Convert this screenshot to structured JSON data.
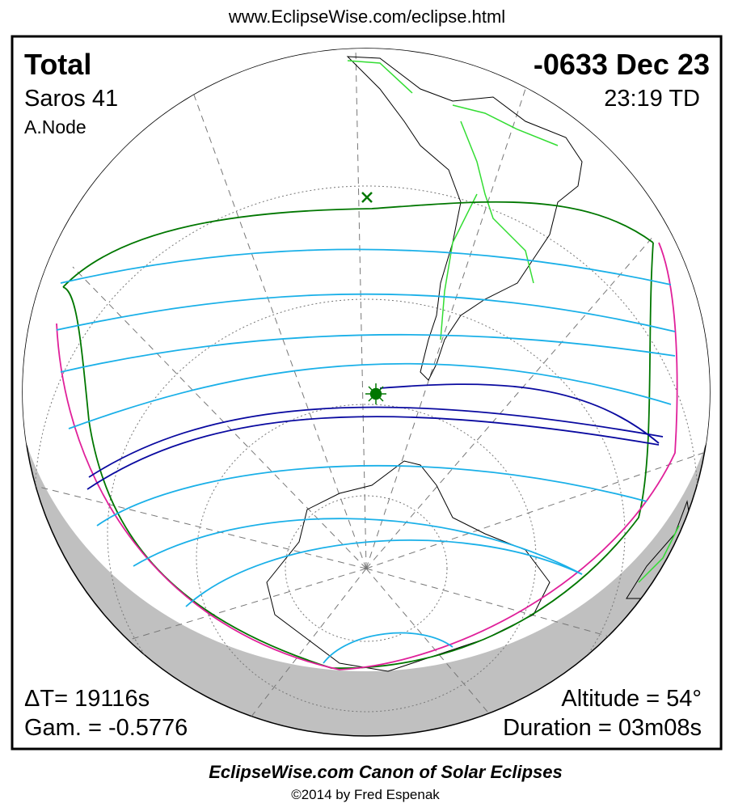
{
  "header": {
    "url": "www.EclipseWise.com/eclipse.html"
  },
  "panel": {
    "eclipse_type": "Total",
    "saros": "Saros  41",
    "node": "A.Node",
    "date": "-0633 Dec 23",
    "time": "23:19 TD",
    "delta_t": "ΔT=  19116s",
    "gamma": "Gam. = -0.5776",
    "altitude": "Altitude = 54°",
    "duration": "Duration = 03m08s"
  },
  "footer": {
    "title": "EclipseWise.com Canon of Solar Eclipses",
    "credit": "©2014 by Fred Espenak"
  }
}
